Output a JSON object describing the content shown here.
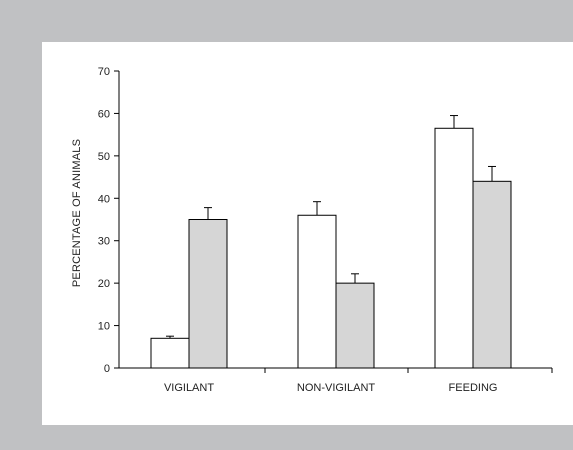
{
  "chart_data": {
    "type": "bar",
    "categories": [
      "VIGILANT",
      "NON-VIGILANT",
      "FEEDING"
    ],
    "series": [
      {
        "fill": "#ffffff",
        "values": [
          7,
          36,
          56.5
        ],
        "errors": [
          0.5,
          3.2,
          3
        ]
      },
      {
        "fill": "#d6d6d6",
        "values": [
          35,
          20,
          44
        ],
        "errors": [
          2.8,
          2.2,
          3.5
        ]
      }
    ],
    "title": "",
    "xlabel": "",
    "ylabel": "PERCENTAGE OF ANIMALS",
    "ylim": [
      0,
      70
    ],
    "yticks": [
      0,
      10,
      20,
      30,
      40,
      50,
      60,
      70
    ],
    "grid": false,
    "legend": "none"
  }
}
